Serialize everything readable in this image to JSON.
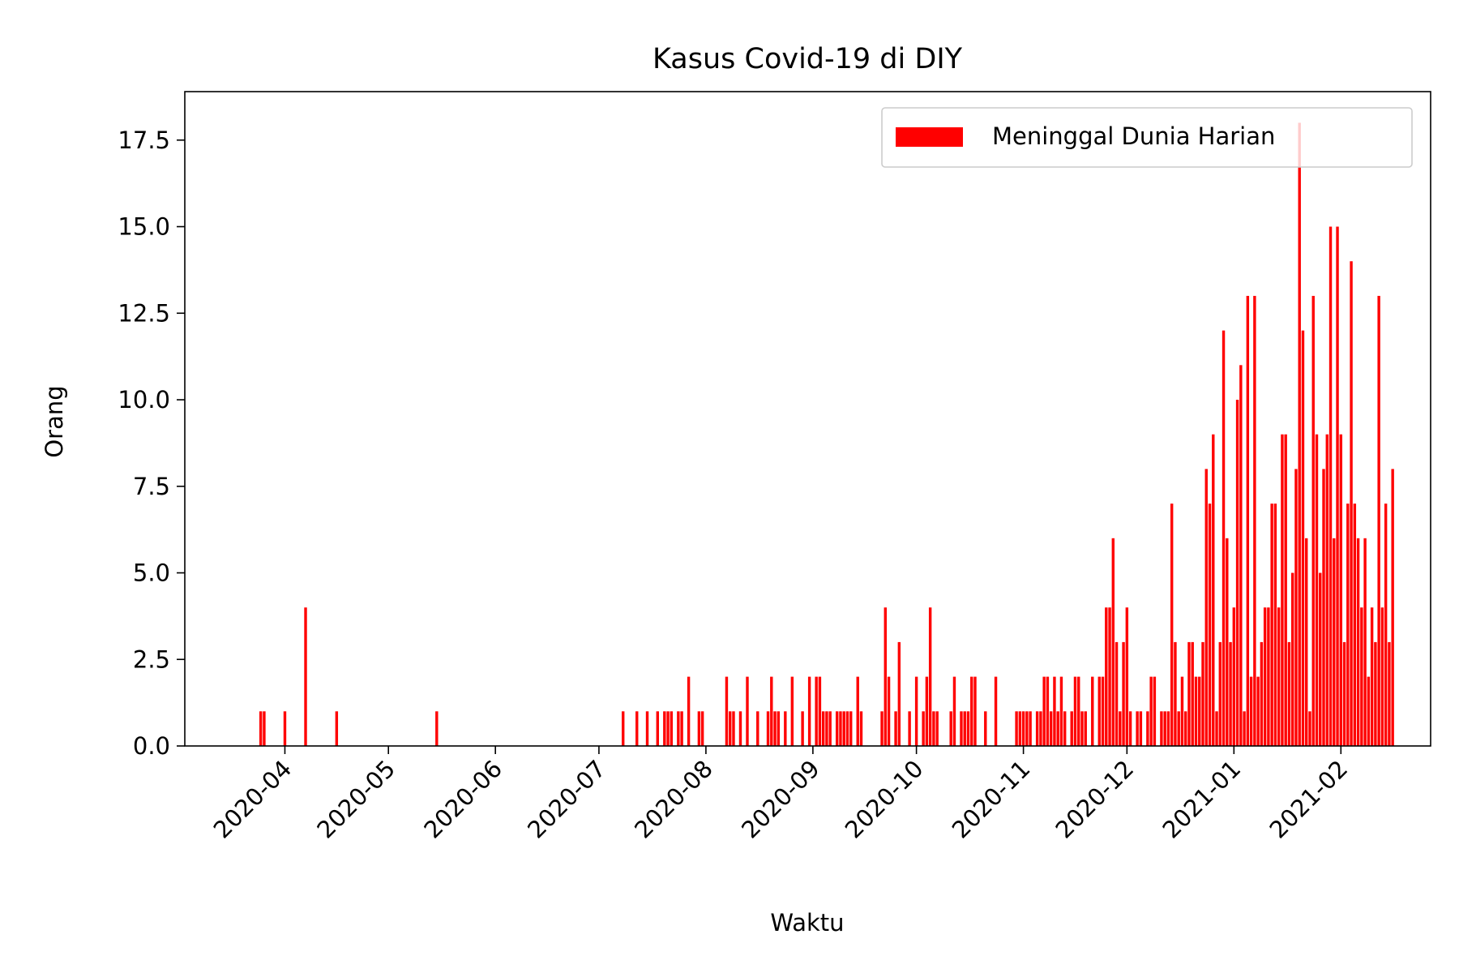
{
  "chart_data": {
    "type": "bar",
    "title": "Kasus Covid-19 di DIY",
    "xlabel": "Waktu",
    "ylabel": "Orang",
    "xlim": [
      "2020-03-03",
      "2021-02-27"
    ],
    "ylim": [
      0,
      18.9
    ],
    "yticks": [
      "0.0",
      "2.5",
      "5.0",
      "7.5",
      "10.0",
      "12.5",
      "15.0",
      "17.5"
    ],
    "xticks": [
      "2020-04",
      "2020-05",
      "2020-06",
      "2020-07",
      "2020-08",
      "2020-09",
      "2020-10",
      "2020-11",
      "2020-12",
      "2021-01",
      "2021-02"
    ],
    "grid": false,
    "legend_position": "top-right",
    "bar_color": "#ff0000",
    "series": [
      {
        "name": "Meninggal Dunia Harian",
        "points": [
          [
            "2020-03-25",
            1
          ],
          [
            "2020-03-26",
            1
          ],
          [
            "2020-04-01",
            1
          ],
          [
            "2020-04-07",
            4
          ],
          [
            "2020-04-16",
            1
          ],
          [
            "2020-05-15",
            1
          ],
          [
            "2020-07-08",
            1
          ],
          [
            "2020-07-12",
            1
          ],
          [
            "2020-07-15",
            1
          ],
          [
            "2020-07-18",
            1
          ],
          [
            "2020-07-20",
            1
          ],
          [
            "2020-07-21",
            1
          ],
          [
            "2020-07-22",
            1
          ],
          [
            "2020-07-24",
            1
          ],
          [
            "2020-07-25",
            1
          ],
          [
            "2020-07-27",
            2
          ],
          [
            "2020-07-30",
            1
          ],
          [
            "2020-07-31",
            1
          ],
          [
            "2020-08-07",
            2
          ],
          [
            "2020-08-08",
            1
          ],
          [
            "2020-08-09",
            1
          ],
          [
            "2020-08-11",
            1
          ],
          [
            "2020-08-13",
            2
          ],
          [
            "2020-08-16",
            1
          ],
          [
            "2020-08-19",
            1
          ],
          [
            "2020-08-20",
            2
          ],
          [
            "2020-08-21",
            1
          ],
          [
            "2020-08-22",
            1
          ],
          [
            "2020-08-24",
            1
          ],
          [
            "2020-08-26",
            2
          ],
          [
            "2020-08-29",
            1
          ],
          [
            "2020-08-31",
            2
          ],
          [
            "2020-09-02",
            2
          ],
          [
            "2020-09-03",
            2
          ],
          [
            "2020-09-04",
            1
          ],
          [
            "2020-09-05",
            1
          ],
          [
            "2020-09-06",
            1
          ],
          [
            "2020-09-08",
            1
          ],
          [
            "2020-09-09",
            1
          ],
          [
            "2020-09-10",
            1
          ],
          [
            "2020-09-11",
            1
          ],
          [
            "2020-09-12",
            1
          ],
          [
            "2020-09-14",
            2
          ],
          [
            "2020-09-15",
            1
          ],
          [
            "2020-09-21",
            1
          ],
          [
            "2020-09-22",
            4
          ],
          [
            "2020-09-23",
            2
          ],
          [
            "2020-09-25",
            1
          ],
          [
            "2020-09-26",
            3
          ],
          [
            "2020-09-29",
            1
          ],
          [
            "2020-10-01",
            2
          ],
          [
            "2020-10-03",
            1
          ],
          [
            "2020-10-04",
            2
          ],
          [
            "2020-10-05",
            4
          ],
          [
            "2020-10-06",
            1
          ],
          [
            "2020-10-07",
            1
          ],
          [
            "2020-10-11",
            1
          ],
          [
            "2020-10-12",
            2
          ],
          [
            "2020-10-14",
            1
          ],
          [
            "2020-10-15",
            1
          ],
          [
            "2020-10-16",
            1
          ],
          [
            "2020-10-17",
            2
          ],
          [
            "2020-10-18",
            2
          ],
          [
            "2020-10-21",
            1
          ],
          [
            "2020-10-24",
            2
          ],
          [
            "2020-10-30",
            1
          ],
          [
            "2020-10-31",
            1
          ],
          [
            "2020-11-01",
            1
          ],
          [
            "2020-11-02",
            1
          ],
          [
            "2020-11-03",
            1
          ],
          [
            "2020-11-05",
            1
          ],
          [
            "2020-11-06",
            1
          ],
          [
            "2020-11-07",
            2
          ],
          [
            "2020-11-08",
            2
          ],
          [
            "2020-11-09",
            1
          ],
          [
            "2020-11-10",
            2
          ],
          [
            "2020-11-11",
            1
          ],
          [
            "2020-11-12",
            2
          ],
          [
            "2020-11-13",
            1
          ],
          [
            "2020-11-15",
            1
          ],
          [
            "2020-11-16",
            2
          ],
          [
            "2020-11-17",
            2
          ],
          [
            "2020-11-18",
            1
          ],
          [
            "2020-11-19",
            1
          ],
          [
            "2020-11-21",
            2
          ],
          [
            "2020-11-23",
            2
          ],
          [
            "2020-11-24",
            2
          ],
          [
            "2020-11-25",
            4
          ],
          [
            "2020-11-26",
            4
          ],
          [
            "2020-11-27",
            6
          ],
          [
            "2020-11-28",
            3
          ],
          [
            "2020-11-29",
            1
          ],
          [
            "2020-11-30",
            3
          ],
          [
            "2020-12-01",
            4
          ],
          [
            "2020-12-02",
            1
          ],
          [
            "2020-12-04",
            1
          ],
          [
            "2020-12-05",
            1
          ],
          [
            "2020-12-07",
            1
          ],
          [
            "2020-12-08",
            2
          ],
          [
            "2020-12-09",
            2
          ],
          [
            "2020-12-11",
            1
          ],
          [
            "2020-12-12",
            1
          ],
          [
            "2020-12-13",
            1
          ],
          [
            "2020-12-14",
            7
          ],
          [
            "2020-12-15",
            3
          ],
          [
            "2020-12-16",
            1
          ],
          [
            "2020-12-17",
            2
          ],
          [
            "2020-12-18",
            1
          ],
          [
            "2020-12-19",
            3
          ],
          [
            "2020-12-20",
            3
          ],
          [
            "2020-12-21",
            2
          ],
          [
            "2020-12-22",
            2
          ],
          [
            "2020-12-23",
            3
          ],
          [
            "2020-12-24",
            8
          ],
          [
            "2020-12-25",
            7
          ],
          [
            "2020-12-26",
            9
          ],
          [
            "2020-12-27",
            1
          ],
          [
            "2020-12-28",
            3
          ],
          [
            "2020-12-29",
            12
          ],
          [
            "2020-12-30",
            6
          ],
          [
            "2020-12-31",
            3
          ],
          [
            "2021-01-01",
            4
          ],
          [
            "2021-01-02",
            10
          ],
          [
            "2021-01-03",
            11
          ],
          [
            "2021-01-04",
            1
          ],
          [
            "2021-01-05",
            13
          ],
          [
            "2021-01-06",
            2
          ],
          [
            "2021-01-07",
            13
          ],
          [
            "2021-01-08",
            2
          ],
          [
            "2021-01-09",
            3
          ],
          [
            "2021-01-10",
            4
          ],
          [
            "2021-01-11",
            4
          ],
          [
            "2021-01-12",
            7
          ],
          [
            "2021-01-13",
            7
          ],
          [
            "2021-01-14",
            4
          ],
          [
            "2021-01-15",
            9
          ],
          [
            "2021-01-16",
            9
          ],
          [
            "2021-01-17",
            3
          ],
          [
            "2021-01-18",
            5
          ],
          [
            "2021-01-19",
            8
          ],
          [
            "2021-01-20",
            18
          ],
          [
            "2021-01-21",
            12
          ],
          [
            "2021-01-22",
            6
          ],
          [
            "2021-01-23",
            1
          ],
          [
            "2021-01-24",
            13
          ],
          [
            "2021-01-25",
            9
          ],
          [
            "2021-01-26",
            5
          ],
          [
            "2021-01-27",
            8
          ],
          [
            "2021-01-28",
            9
          ],
          [
            "2021-01-29",
            15
          ],
          [
            "2021-01-30",
            6
          ],
          [
            "2021-01-31",
            15
          ],
          [
            "2021-02-01",
            9
          ],
          [
            "2021-02-02",
            3
          ],
          [
            "2021-02-03",
            7
          ],
          [
            "2021-02-04",
            14
          ],
          [
            "2021-02-05",
            7
          ],
          [
            "2021-02-06",
            6
          ],
          [
            "2021-02-07",
            4
          ],
          [
            "2021-02-08",
            6
          ],
          [
            "2021-02-09",
            2
          ],
          [
            "2021-02-10",
            4
          ],
          [
            "2021-02-11",
            3
          ],
          [
            "2021-02-12",
            13
          ],
          [
            "2021-02-13",
            4
          ],
          [
            "2021-02-14",
            7
          ],
          [
            "2021-02-15",
            3
          ],
          [
            "2021-02-16",
            8
          ]
        ]
      }
    ]
  }
}
